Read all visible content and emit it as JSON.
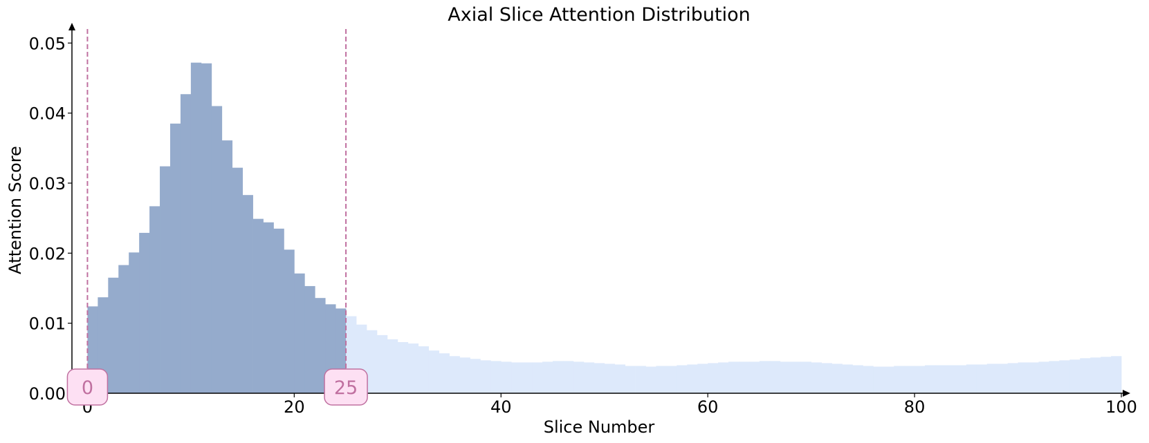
{
  "chart_data": {
    "type": "bar",
    "title": "Axial Slice Attention Distribution",
    "xlabel": "Slice Number",
    "ylabel": "Attention Score",
    "xlim": [
      -1.5,
      100
    ],
    "ylim": [
      0,
      0.052
    ],
    "x_ticks": [
      0,
      20,
      40,
      60,
      80,
      100
    ],
    "x_tick_labels": [
      "0",
      "20",
      "40",
      "60",
      "80",
      "100"
    ],
    "y_ticks": [
      0,
      0.01,
      0.02,
      0.03,
      0.04,
      0.05
    ],
    "y_tick_labels": [
      "0.00",
      "0.01",
      "0.02",
      "0.03",
      "0.04",
      "0.05"
    ],
    "grid": false,
    "highlight_range": [
      0,
      25
    ],
    "markers": [
      {
        "x": 0,
        "label": "0"
      },
      {
        "x": 25,
        "label": "25"
      }
    ],
    "colors": {
      "highlight": "#95abcc",
      "base": "#dde9fb",
      "marker": "#c070a0",
      "marker_fill": "#fde0f3"
    },
    "values": [
      0.0124,
      0.0137,
      0.0165,
      0.0183,
      0.0201,
      0.0229,
      0.0267,
      0.0324,
      0.0385,
      0.0427,
      0.0472,
      0.0471,
      0.041,
      0.0361,
      0.0322,
      0.0283,
      0.0249,
      0.0244,
      0.0235,
      0.0205,
      0.0171,
      0.0153,
      0.0136,
      0.0127,
      0.0121,
      0.011,
      0.0098,
      0.009,
      0.0083,
      0.0077,
      0.0073,
      0.0071,
      0.0067,
      0.0061,
      0.0057,
      0.0053,
      0.0051,
      0.0049,
      0.0047,
      0.0046,
      0.0045,
      0.0044,
      0.0044,
      0.0044,
      0.0045,
      0.0046,
      0.0046,
      0.0045,
      0.0044,
      0.0043,
      0.0042,
      0.0041,
      0.0039,
      0.0039,
      0.0038,
      0.0039,
      0.0039,
      0.004,
      0.0041,
      0.0042,
      0.0043,
      0.0044,
      0.0045,
      0.0045,
      0.0045,
      0.0046,
      0.0046,
      0.0045,
      0.0045,
      0.0045,
      0.0044,
      0.0043,
      0.0042,
      0.0041,
      0.004,
      0.0039,
      0.0038,
      0.0038,
      0.0039,
      0.0039,
      0.0039,
      0.004,
      0.004,
      0.004,
      0.004,
      0.0041,
      0.0041,
      0.0042,
      0.0042,
      0.0043,
      0.0044,
      0.0044,
      0.0045,
      0.0046,
      0.0047,
      0.0048,
      0.005,
      0.0051,
      0.0052,
      0.0053
    ]
  }
}
